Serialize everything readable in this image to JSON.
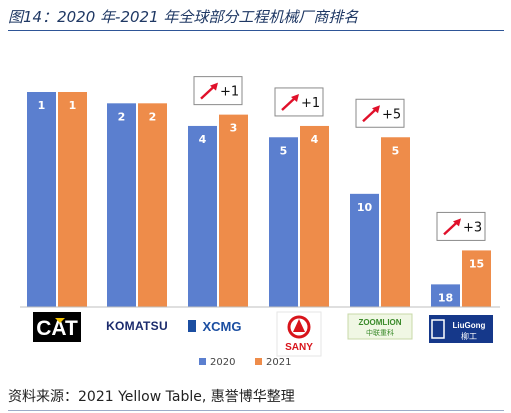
{
  "title": "图14：2020 年-2021 年全球部分工程机械厂商排名",
  "source": "资料来源：2021 Yellow Table, 惠誉博华整理",
  "colors": {
    "s2020": "#5b7fcf",
    "s2021": "#ee8c4a",
    "title": "#1f3864",
    "arrow": "#e0102a"
  },
  "chart_data": {
    "type": "bar",
    "categories": [
      "CAT",
      "KOMATSU",
      "XCMG",
      "SANY",
      "ZOOMLION",
      "LIUGONG"
    ],
    "series": [
      {
        "name": "2020",
        "values": [
          1,
          2,
          4,
          5,
          10,
          18
        ]
      },
      {
        "name": "2021",
        "values": [
          1,
          2,
          3,
          4,
          5,
          15
        ]
      }
    ],
    "annotations": [
      "",
      "",
      "+1",
      "+1",
      "+5",
      "+3"
    ],
    "logo_text": {
      "cat": "CAT",
      "komatsu": "KOMATSU",
      "xcmg": "XCMG",
      "sany": "SANY",
      "zoomlion": "ZOOMLION",
      "zoomlion_cn": "中联重科",
      "liugong": "LiuGong",
      "liugong_cn": "柳工"
    },
    "legend_position": "bottom",
    "grid": false
  }
}
